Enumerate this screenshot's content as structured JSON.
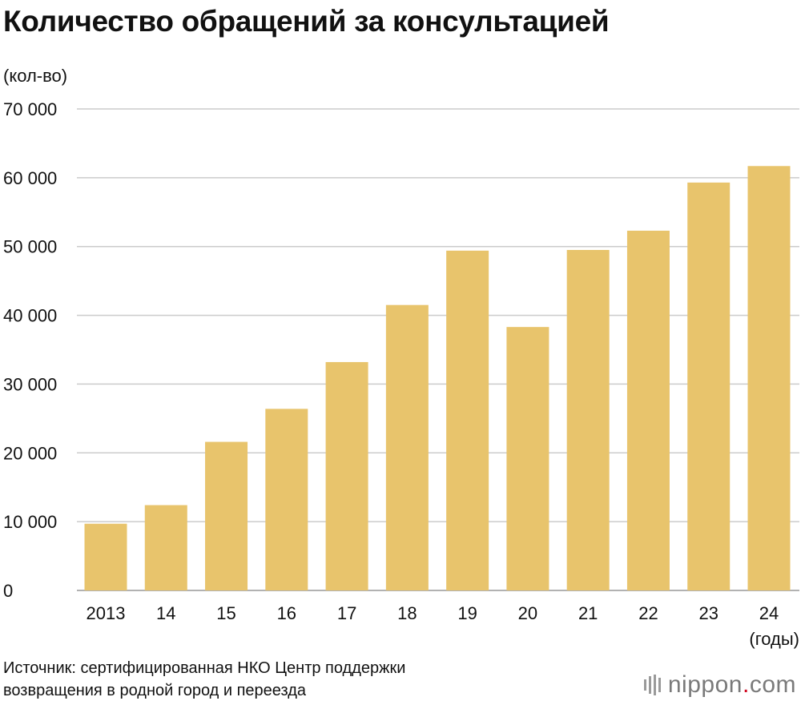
{
  "chart_data": {
    "type": "bar",
    "title": "Количество обращений за консультацией",
    "ylabel": "(кол-во)",
    "xlabel": "(годы)",
    "categories": [
      "2013",
      "14",
      "15",
      "16",
      "17",
      "18",
      "19",
      "20",
      "21",
      "22",
      "23",
      "24"
    ],
    "values": [
      9700,
      12400,
      21600,
      26400,
      33200,
      41500,
      49400,
      38300,
      49500,
      52300,
      59300,
      61700
    ],
    "ylim": [
      0,
      70000
    ],
    "yticks": [
      0,
      10000,
      20000,
      30000,
      40000,
      50000,
      60000,
      70000
    ],
    "ytick_labels": [
      "0",
      "10 000",
      "20 000",
      "30 000",
      "40 000",
      "50 000",
      "60 000",
      "70 000"
    ],
    "grid": true,
    "bar_color": "#e8c46c",
    "grid_color": "#cccccc"
  },
  "source": {
    "line1": "Источник: сертифицированная НКО Центр поддержки",
    "line2": "возвращения в родной город и переезда"
  },
  "logo": {
    "name": "nippon",
    "dot": ".",
    "tld": "com",
    "icon": "nippon-logo-icon"
  }
}
